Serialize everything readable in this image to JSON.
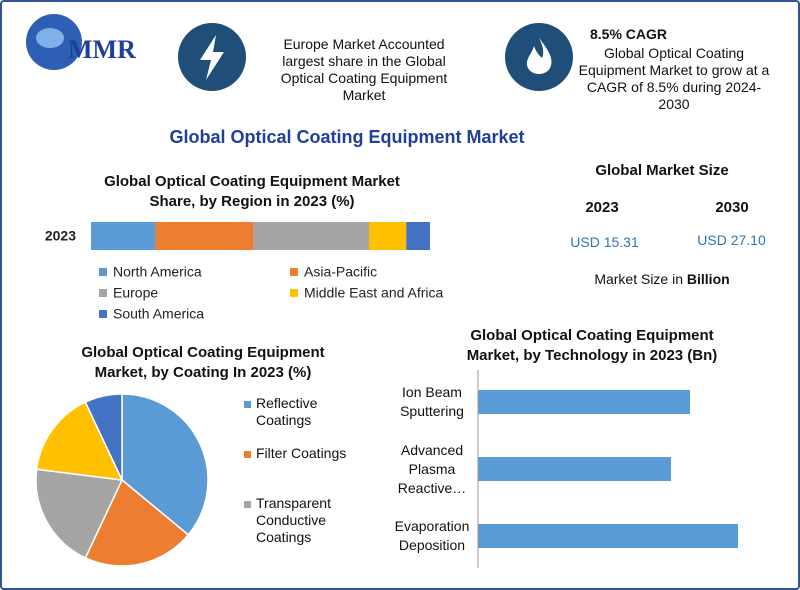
{
  "header": {
    "logo": "MMR",
    "highlight": "Europe Market Accounted largest share in the Global Optical Coating Equipment Market",
    "cagr_title": "8.5% CAGR",
    "cagr_text": "Global Optical Coating Equipment Market to grow at a CAGR of 8.5% during 2024-2030"
  },
  "title": "Global Optical Coating Equipment Market",
  "market_size": {
    "title": "Global Market Size",
    "years": [
      "2023",
      "2030"
    ],
    "amounts": [
      "USD 15.31",
      "USD 27.10"
    ],
    "note": "Market Size in ",
    "note_unit": "Billion"
  },
  "chart_data": [
    {
      "type": "stacked_bar",
      "title": "Global Optical Coating Equipment Market Share, by Region in 2023 (%)",
      "categories": [
        "2023"
      ],
      "xlim": [
        0,
        100
      ],
      "series": [
        {
          "name": "North America",
          "color": "#5b9bd5",
          "values": [
            19
          ]
        },
        {
          "name": "Asia-Pacific",
          "color": "#ed7d31",
          "values": [
            29
          ]
        },
        {
          "name": "Europe",
          "color": "#a5a5a5",
          "values": [
            34
          ]
        },
        {
          "name": "Middle East and Africa",
          "color": "#ffc000",
          "values": [
            11
          ]
        },
        {
          "name": "South America",
          "color": "#4472c4",
          "values": [
            7
          ]
        }
      ]
    },
    {
      "type": "pie",
      "title": "Global Optical Coating Equipment Market, by Coating In 2023 (%)",
      "categories": [
        "Reflective Coatings",
        "Filter Coatings",
        "Transparent Conductive Coatings",
        null,
        null
      ],
      "values": [
        36,
        21,
        20,
        16,
        7
      ],
      "colors": [
        "#5b9bd5",
        "#ed7d31",
        "#a5a5a5",
        "#ffc000",
        "#4472c4"
      ]
    },
    {
      "type": "hbar",
      "title": "Global Optical Coating Equipment Market, by Technology in 2023 (Bn)",
      "categories": [
        "Ion Beam Sputtering",
        "Advanced Plasma Reactive…",
        "Evaporation Deposition"
      ],
      "values": [
        2.12,
        1.93,
        2.6
      ],
      "xlim": [
        0,
        3
      ],
      "color": "#5b9bd5"
    }
  ]
}
